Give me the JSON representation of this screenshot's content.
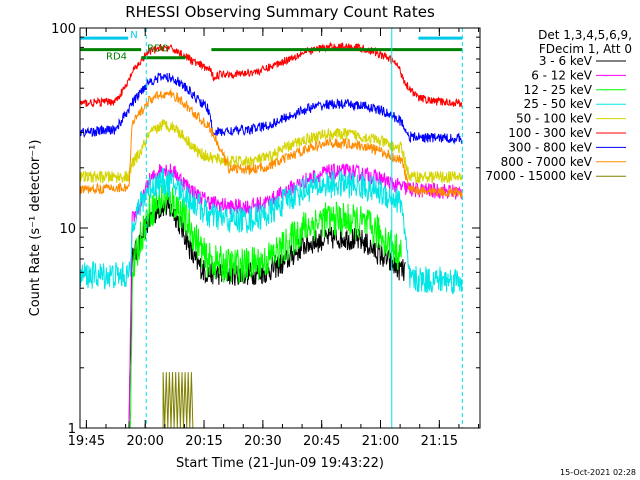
{
  "chart_data": {
    "type": "line",
    "title": "RHESSI Observing Summary Count Rates",
    "xlabel": "Start Time (21-Jun-09 19:43:22)",
    "ylabel": "Count Rate (s⁻¹ detector⁻¹)",
    "yscale": "log",
    "ylim": [
      1,
      100
    ],
    "xlim_minutes": [
      0,
      102
    ],
    "x_tick_labels": [
      "19:45",
      "20:00",
      "20:15",
      "20:30",
      "20:45",
      "21:00",
      "21:15"
    ],
    "x_tick_minutes": [
      1.63,
      16.63,
      31.63,
      46.63,
      61.63,
      76.63,
      91.63
    ],
    "y_tick_labels": [
      "1",
      "10",
      "100"
    ],
    "y_tick_values": [
      1,
      10,
      100
    ],
    "timestamp": "15-Oct-2021 02:28",
    "legend_header": [
      "Det 1,3,4,5,6,9,",
      "FDecim 1, Att 0"
    ],
    "legend_placement": "right",
    "flags": [
      {
        "label": "RD4",
        "color": "#008000",
        "x_start": 0,
        "x_end": 15.6,
        "level": 78
      },
      {
        "label": "RD0",
        "color": "#008000",
        "x_start": 15.6,
        "x_end": 26.9,
        "level": 71
      },
      {
        "label": "",
        "color": "#008000",
        "x_start": 33.5,
        "x_end": 97.5,
        "level": 78
      },
      {
        "label": "N",
        "color": "#00c8e8",
        "x_start": 0,
        "x_end": 12.3,
        "level": 89
      },
      {
        "label": "",
        "color": "#00c8e8",
        "x_start": 86.3,
        "x_end": 97.5,
        "level": 89
      }
    ],
    "solid_verticals_minutes": [
      0,
      79.5
    ],
    "dashed_verticals_minutes": [
      16.9,
      97.5
    ],
    "series": [
      {
        "name": "3 - 6 keV",
        "color": "#000000",
        "noise": 0.06,
        "points": [
          [
            12.5,
            1
          ],
          [
            13.3,
            7
          ],
          [
            15.5,
            8.5
          ],
          [
            17.5,
            11
          ],
          [
            21,
            13
          ],
          [
            24,
            12
          ],
          [
            27,
            9
          ],
          [
            29,
            7
          ],
          [
            32,
            6
          ],
          [
            37,
            5.9
          ],
          [
            42,
            5.9
          ],
          [
            47,
            6
          ],
          [
            52,
            6.7
          ],
          [
            57,
            8.2
          ],
          [
            62,
            8.8
          ],
          [
            67,
            9
          ],
          [
            72,
            8.6
          ],
          [
            76,
            7.5
          ],
          [
            80,
            6.5
          ],
          [
            83,
            6
          ]
        ]
      },
      {
        "name": "6 - 12 keV",
        "color": "#ff00ff",
        "noise": 0.04,
        "points": [
          [
            12.5,
            1
          ],
          [
            13.3,
            11
          ],
          [
            15.5,
            13
          ],
          [
            17.5,
            17
          ],
          [
            21,
            20
          ],
          [
            24,
            19
          ],
          [
            27,
            16.5
          ],
          [
            30,
            14.5
          ],
          [
            33,
            13.5
          ],
          [
            38,
            12.8
          ],
          [
            43,
            12.8
          ],
          [
            48,
            13.5
          ],
          [
            53,
            15.5
          ],
          [
            58,
            17.5
          ],
          [
            63,
            19
          ],
          [
            68,
            19.2
          ],
          [
            73,
            18.5
          ],
          [
            77,
            17.5
          ],
          [
            80,
            16.5
          ],
          [
            82,
            16
          ],
          [
            85,
            15.5
          ],
          [
            93,
            15.3
          ],
          [
            97.5,
            15
          ]
        ]
      },
      {
        "name": "12 - 25 keV",
        "color": "#00ff00",
        "noise": 0.09,
        "points": [
          [
            12.8,
            1
          ],
          [
            13.4,
            6
          ],
          [
            15.5,
            9
          ],
          [
            17.5,
            12
          ],
          [
            21,
            14
          ],
          [
            24,
            13.5
          ],
          [
            27,
            11
          ],
          [
            30,
            8.5
          ],
          [
            32,
            7
          ],
          [
            37,
            6.5
          ],
          [
            42,
            6.5
          ],
          [
            47,
            6.8
          ],
          [
            52,
            8
          ],
          [
            57,
            10
          ],
          [
            62,
            11
          ],
          [
            67,
            11
          ],
          [
            72,
            10.5
          ],
          [
            76,
            9.5
          ],
          [
            80,
            8
          ],
          [
            82,
            7.2
          ]
        ]
      },
      {
        "name": "25 - 50 keV",
        "color": "#00e5e5",
        "noise": 0.07,
        "points": [
          [
            0,
            5.8
          ],
          [
            12.8,
            5.8
          ],
          [
            13.4,
            11
          ],
          [
            15.5,
            13
          ],
          [
            17.5,
            16
          ],
          [
            21,
            17
          ],
          [
            24,
            16.5
          ],
          [
            27,
            14.5
          ],
          [
            30,
            13
          ],
          [
            33,
            11.5
          ],
          [
            38,
            11
          ],
          [
            43,
            11
          ],
          [
            48,
            11.8
          ],
          [
            53,
            14
          ],
          [
            58,
            15.8
          ],
          [
            63,
            16.5
          ],
          [
            68,
            16.6
          ],
          [
            73,
            16
          ],
          [
            77,
            15
          ],
          [
            80,
            14
          ],
          [
            82,
            13.5
          ],
          [
            84,
            5.5
          ],
          [
            97.5,
            5.5
          ]
        ]
      },
      {
        "name": "50 - 100 keV",
        "color": "#d4d400",
        "noise": 0.03,
        "points": [
          [
            0,
            18
          ],
          [
            12.5,
            18
          ],
          [
            13.3,
            21
          ],
          [
            15.5,
            24
          ],
          [
            17.5,
            29
          ],
          [
            21,
            33
          ],
          [
            24,
            32
          ],
          [
            27,
            28
          ],
          [
            30,
            24
          ],
          [
            33,
            22.5
          ],
          [
            38,
            21.5
          ],
          [
            43,
            21.5
          ],
          [
            48,
            22.5
          ],
          [
            53,
            25.5
          ],
          [
            58,
            28
          ],
          [
            63,
            29.5
          ],
          [
            68,
            29.5
          ],
          [
            73,
            28.5
          ],
          [
            77,
            27
          ],
          [
            80,
            25.5
          ],
          [
            82,
            25
          ],
          [
            84,
            18
          ],
          [
            97.5,
            18
          ]
        ]
      },
      {
        "name": "100 - 300 keV",
        "color": "#ff0000",
        "noise": 0.02,
        "points": [
          [
            0,
            42
          ],
          [
            9,
            43
          ],
          [
            12,
            52
          ],
          [
            13.3,
            60
          ],
          [
            15.5,
            68
          ],
          [
            17.5,
            76
          ],
          [
            21,
            80
          ],
          [
            24,
            78
          ],
          [
            27,
            72
          ],
          [
            30,
            66
          ],
          [
            33,
            62
          ],
          [
            34,
            57
          ],
          [
            36,
            59
          ],
          [
            41,
            59
          ],
          [
            46,
            61
          ],
          [
            51,
            67
          ],
          [
            56,
            74
          ],
          [
            61,
            79
          ],
          [
            66,
            81
          ],
          [
            71,
            80
          ],
          [
            75,
            76
          ],
          [
            79,
            70
          ],
          [
            81,
            65
          ],
          [
            83,
            53
          ],
          [
            86,
            45
          ],
          [
            90,
            43
          ],
          [
            97.5,
            42
          ]
        ]
      },
      {
        "name": "300 - 800 keV",
        "color": "#0000ff",
        "noise": 0.025,
        "points": [
          [
            0,
            30
          ],
          [
            9,
            31
          ],
          [
            12,
            38
          ],
          [
            13.3,
            42
          ],
          [
            15.5,
            48
          ],
          [
            17.5,
            54
          ],
          [
            21,
            57
          ],
          [
            24,
            56
          ],
          [
            27,
            50
          ],
          [
            30,
            44
          ],
          [
            32.5,
            40
          ],
          [
            34,
            30
          ],
          [
            38,
            30.5
          ],
          [
            43,
            31
          ],
          [
            48,
            32.5
          ],
          [
            53,
            36
          ],
          [
            58,
            39.5
          ],
          [
            63,
            41.5
          ],
          [
            68,
            41.5
          ],
          [
            73,
            40.5
          ],
          [
            77,
            38.5
          ],
          [
            80,
            36
          ],
          [
            82,
            34
          ],
          [
            84,
            28.5
          ],
          [
            97.5,
            28
          ]
        ]
      },
      {
        "name": "800 - 7000 keV",
        "color": "#ff8c00",
        "noise": 0.025,
        "points": [
          [
            0,
            15.5
          ],
          [
            12.5,
            16
          ],
          [
            13.3,
            33
          ],
          [
            15.5,
            38
          ],
          [
            17.5,
            43
          ],
          [
            21,
            47
          ],
          [
            24,
            46
          ],
          [
            27,
            41
          ],
          [
            30,
            36
          ],
          [
            33,
            32
          ],
          [
            38,
            20
          ],
          [
            43,
            19.5
          ],
          [
            48,
            20.3
          ],
          [
            53,
            22.5
          ],
          [
            58,
            25
          ],
          [
            63,
            26.5
          ],
          [
            68,
            26.5
          ],
          [
            73,
            25.5
          ],
          [
            77,
            24
          ],
          [
            80,
            22.5
          ],
          [
            82,
            22
          ],
          [
            84,
            15.5
          ],
          [
            97.5,
            15
          ]
        ]
      },
      {
        "name": "7000 - 15000 keV",
        "color": "#808000",
        "noise": 0,
        "points": [
          [
            21.2,
            1
          ],
          [
            21.2,
            1.9
          ],
          [
            21.6,
            1
          ],
          [
            22,
            1.9
          ],
          [
            22.4,
            1
          ],
          [
            22.8,
            1.9
          ],
          [
            23.2,
            1
          ],
          [
            23.6,
            1.9
          ],
          [
            24,
            1
          ],
          [
            24.4,
            1.9
          ],
          [
            24.8,
            1
          ],
          [
            25.2,
            1.9
          ],
          [
            25.6,
            1
          ],
          [
            26,
            1.9
          ],
          [
            26.4,
            1
          ],
          [
            26.8,
            1.9
          ],
          [
            27.2,
            1
          ],
          [
            27.6,
            1.9
          ],
          [
            28,
            1
          ],
          [
            28.4,
            1.9
          ],
          [
            28.8,
            1
          ]
        ]
      }
    ]
  }
}
